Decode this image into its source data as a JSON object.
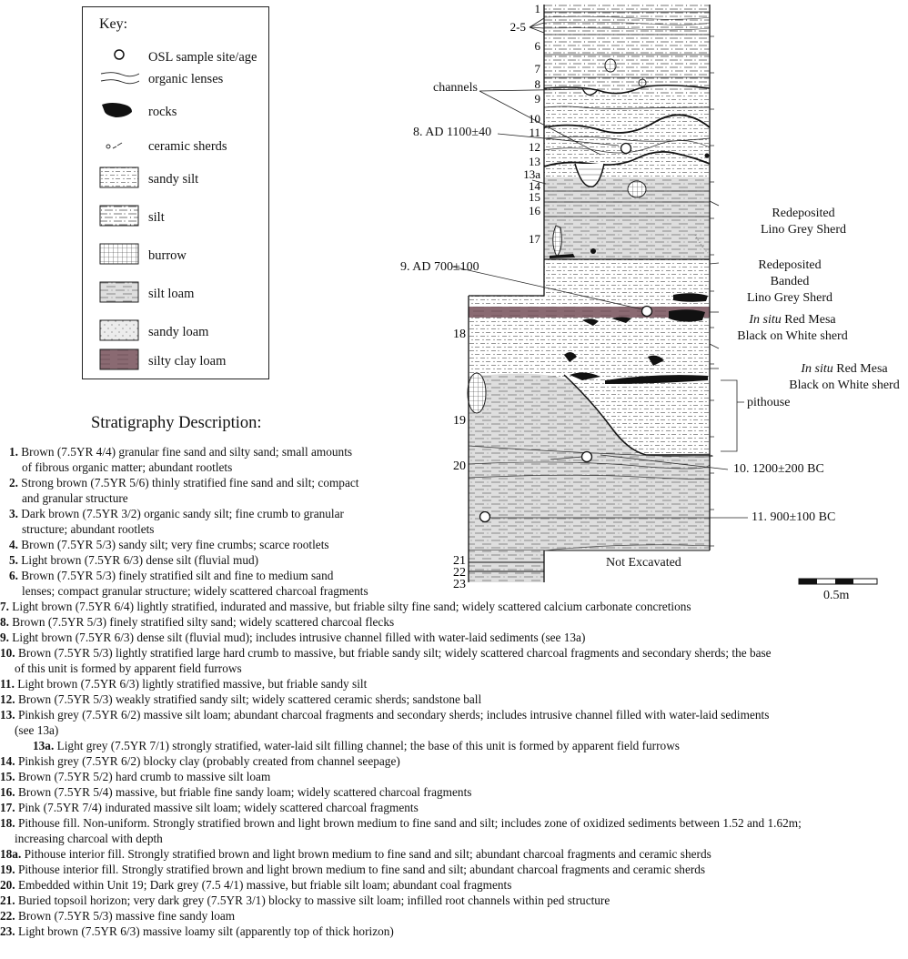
{
  "key": {
    "title": "Key:",
    "items": [
      {
        "label": "OSL sample site/age",
        "icon": "circle-icon"
      },
      {
        "label": "organic lenses",
        "icon": "wave-lines-icon"
      },
      {
        "label": "rocks",
        "icon": "rock-icon"
      },
      {
        "label": "ceramic sherds",
        "icon": "sherd-icon"
      },
      {
        "label": "sandy silt",
        "icon": "sandy-silt-pattern"
      },
      {
        "label": "silt",
        "icon": "silt-pattern"
      },
      {
        "label": "burrow",
        "icon": "burrow-pattern"
      },
      {
        "label": "silt loam",
        "icon": "silt-loam-pattern"
      },
      {
        "label": "sandy loam",
        "icon": "sandy-loam-pattern"
      },
      {
        "label": "silty clay loam",
        "icon": "silty-clay-loam-pattern",
        "color": "#8a6a72"
      }
    ]
  },
  "profile": {
    "unit_labels": [
      "1",
      "2-5",
      "6",
      "7",
      "8",
      "9",
      "10",
      "11",
      "12",
      "13",
      "13a",
      "14",
      "15",
      "16",
      "17",
      "18",
      "19",
      "20",
      "21",
      "22",
      "23"
    ],
    "annotations": {
      "channels": "channels",
      "osl8": "8. AD 1100±40",
      "osl9": "9. AD 700±100",
      "osl10": "10. 1200±200 BC",
      "osl11": "11. 900±100 BC",
      "redep1": [
        "Redeposited",
        "Lino Grey Sherd"
      ],
      "redep2": [
        "Redeposited",
        "Banded",
        "Lino Grey Sherd"
      ],
      "insitu1_em": "In situ",
      "insitu1_rest": " Red Mesa",
      "insitu1_line2": "Black on White sherd",
      "insitu2_em": "In situ",
      "insitu2_rest": " Red Mesa",
      "insitu2_line2": "Black on White sherd",
      "pithouse": "pithouse",
      "not_excavated": "Not Excavated",
      "scale": "0.5m"
    }
  },
  "stratigraphy": {
    "title": "Stratigraphy Description:",
    "entries": [
      {
        "n": "1.",
        "lines": [
          "Brown (7.5YR 4/4) granular fine sand and silty sand; small amounts",
          "of fibrous organic matter; abundant rootlets"
        ]
      },
      {
        "n": "2.",
        "lines": [
          "Strong brown (7.5YR 5/6) thinly stratified fine sand and silt; compact",
          "and granular structure"
        ]
      },
      {
        "n": "3.",
        "lines": [
          "Dark brown (7.5YR 3/2) organic sandy silt; fine crumb to granular",
          "structure; abundant rootlets"
        ]
      },
      {
        "n": "4.",
        "lines": [
          "Brown (7.5YR 5/3) sandy silt; very fine crumbs; scarce rootlets"
        ]
      },
      {
        "n": "5.",
        "lines": [
          "Light brown (7.5YR 6/3) dense silt (fluvial mud)"
        ]
      },
      {
        "n": "6.",
        "lines": [
          "Brown (7.5YR 5/3) finely stratified silt and fine to medium sand",
          "lenses; compact granular structure; widely scattered charcoal fragments"
        ]
      },
      {
        "n": "7.",
        "lines": [
          "Light brown (7.5YR 6/4) lightly stratified, indurated and massive, but friable silty fine sand; widely scattered calcium carbonate concretions"
        ]
      },
      {
        "n": "8.",
        "lines": [
          "Brown (7.5YR 5/3) finely stratified silty sand; widely scattered charcoal flecks"
        ]
      },
      {
        "n": "9.",
        "lines": [
          "Light brown (7.5YR 6/3) dense silt (fluvial mud); includes intrusive channel filled with water-laid sediments (see 13a)"
        ]
      },
      {
        "n": "10.",
        "lines": [
          "Brown (7.5YR 5/3) lightly stratified large hard crumb to massive, but friable sandy silt; widely scattered charcoal fragments and secondary sherds; the base",
          "of this unit is formed by apparent field furrows"
        ]
      },
      {
        "n": "11.",
        "lines": [
          "Light brown (7.5YR 6/3) lightly stratified massive, but friable sandy silt"
        ]
      },
      {
        "n": "12.",
        "lines": [
          "Brown (7.5YR 5/3) weakly stratified sandy silt; widely scattered ceramic sherds; sandstone ball"
        ]
      },
      {
        "n": "13.",
        "lines": [
          "Pinkish grey (7.5YR 6/2) massive silt loam; abundant charcoal fragments and secondary sherds; includes intrusive channel filled with water-laid sediments",
          "(see 13a)"
        ]
      },
      {
        "n": "13a.",
        "lines": [
          "Light grey (7.5YR 7/1) strongly stratified, water-laid silt filling channel; the base of this unit is formed by apparent field furrows"
        ]
      },
      {
        "n": "14.",
        "lines": [
          "Pinkish grey (7.5YR 6/2) blocky clay (probably created from channel seepage)"
        ]
      },
      {
        "n": "15.",
        "lines": [
          "Brown (7.5YR 5/2) hard crumb to massive silt loam"
        ]
      },
      {
        "n": "16.",
        "lines": [
          "Brown (7.5YR 5/4) massive, but friable fine sandy loam; widely scattered charcoal fragments"
        ]
      },
      {
        "n": "17.",
        "lines": [
          "Pink (7.5YR 7/4) indurated massive silt loam; widely scattered charcoal fragments"
        ]
      },
      {
        "n": "18.",
        "lines": [
          "Pithouse fill. Non-uniform. Strongly stratified brown and light brown medium to fine sand and silt; includes zone of oxidized sediments between 1.52 and 1.62m;",
          "increasing charcoal with depth"
        ]
      },
      {
        "n": "18a.",
        "lines": [
          "Pithouse interior fill. Strongly stratified brown and light brown medium to fine sand and silt; abundant charcoal fragments and ceramic sherds"
        ]
      },
      {
        "n": "19.",
        "lines": [
          "Pithouse interior fill. Strongly stratified brown and light brown medium to fine sand and silt; abundant charcoal fragments and ceramic sherds"
        ]
      },
      {
        "n": "20.",
        "lines": [
          "Embedded within Unit 19; Dark grey (7.5 4/1) massive, but friable silt loam; abundant coal fragments"
        ]
      },
      {
        "n": "21.",
        "lines": [
          "Buried topsoil horizon; very dark grey (7.5YR 3/1) blocky to massive silt loam; infilled root channels within ped structure"
        ]
      },
      {
        "n": "22.",
        "lines": [
          "Brown (7.5YR 5/3) massive fine sandy loam"
        ]
      },
      {
        "n": "23.",
        "lines": [
          "Light brown (7.5YR 6/3) massive loamy silt (apparently top of thick horizon)"
        ]
      }
    ]
  }
}
